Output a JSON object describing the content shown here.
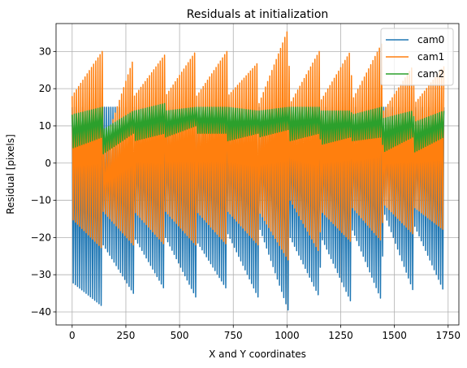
{
  "chart_data": {
    "type": "line",
    "title": "Residuals at initialization",
    "xlabel": "X and Y coordinates",
    "ylabel": "Residual [pixels]",
    "xlim": [
      -75,
      1800
    ],
    "ylim": [
      -43.5,
      37.5
    ],
    "xticks": [
      0,
      250,
      500,
      750,
      1000,
      1250,
      1500,
      1750
    ],
    "yticks": [
      -40,
      -30,
      -20,
      -10,
      0,
      10,
      20,
      30
    ],
    "grid": true,
    "legend_position": "top-right",
    "segment_breaks": [
      0,
      145,
      290,
      435,
      580,
      725,
      870,
      1015,
      1160,
      1305,
      1450,
      1595,
      1740
    ],
    "series": [
      {
        "name": "cam0",
        "color": "#1f77b4",
        "x_range": [
          0,
          1730
        ],
        "period": 10,
        "envelope_max": [
          [
            0,
            15
          ],
          [
            145,
            15
          ],
          [
            290,
            15
          ],
          [
            435,
            15
          ],
          [
            580,
            15
          ],
          [
            725,
            15
          ],
          [
            870,
            15
          ],
          [
            1015,
            15
          ],
          [
            1160,
            15
          ],
          [
            1305,
            15
          ],
          [
            1450,
            15
          ],
          [
            1595,
            15
          ],
          [
            1730,
            15
          ]
        ],
        "envelope_min": [
          [
            0,
            -32
          ],
          [
            140,
            -38.5
          ],
          [
            145,
            -22
          ],
          [
            285,
            -35
          ],
          [
            290,
            -20
          ],
          [
            430,
            -34
          ],
          [
            435,
            -20
          ],
          [
            575,
            -36
          ],
          [
            580,
            -21
          ],
          [
            720,
            -34
          ],
          [
            725,
            -19
          ],
          [
            865,
            -36
          ],
          [
            870,
            -17
          ],
          [
            1005,
            -39.5
          ],
          [
            1015,
            -20
          ],
          [
            1150,
            -36
          ],
          [
            1160,
            -20
          ],
          [
            1295,
            -37
          ],
          [
            1305,
            -18
          ],
          [
            1440,
            -37
          ],
          [
            1450,
            -13
          ],
          [
            1585,
            -34
          ],
          [
            1595,
            -17
          ],
          [
            1730,
            -34.5
          ]
        ]
      },
      {
        "name": "cam1",
        "color": "#ff7f0e",
        "x_range": [
          0,
          1730
        ],
        "period": 10,
        "envelope_max": [
          [
            0,
            18
          ],
          [
            140,
            30
          ],
          [
            145,
            4
          ],
          [
            285,
            28
          ],
          [
            290,
            18
          ],
          [
            430,
            29
          ],
          [
            435,
            18
          ],
          [
            575,
            30
          ],
          [
            580,
            18
          ],
          [
            720,
            30
          ],
          [
            725,
            18
          ],
          [
            865,
            27
          ],
          [
            870,
            16
          ],
          [
            1005,
            36
          ],
          [
            1015,
            16
          ],
          [
            1150,
            30
          ],
          [
            1160,
            17
          ],
          [
            1295,
            30
          ],
          [
            1305,
            17
          ],
          [
            1440,
            32
          ],
          [
            1450,
            14
          ],
          [
            1585,
            26
          ],
          [
            1595,
            16
          ],
          [
            1730,
            26
          ]
        ],
        "envelope_min": [
          [
            0,
            -15
          ],
          [
            140,
            -23
          ],
          [
            145,
            -13
          ],
          [
            285,
            -22
          ],
          [
            290,
            -13
          ],
          [
            430,
            -22
          ],
          [
            435,
            -13
          ],
          [
            575,
            -22
          ],
          [
            580,
            -13
          ],
          [
            720,
            -22
          ],
          [
            725,
            -13
          ],
          [
            865,
            -22
          ],
          [
            870,
            -13
          ],
          [
            1005,
            -26
          ],
          [
            1015,
            -10
          ],
          [
            1150,
            -24
          ],
          [
            1160,
            -13
          ],
          [
            1295,
            -21
          ],
          [
            1305,
            -12
          ],
          [
            1440,
            -21
          ],
          [
            1450,
            -11
          ],
          [
            1585,
            -19
          ],
          [
            1595,
            -12
          ],
          [
            1730,
            -18
          ]
        ]
      },
      {
        "name": "cam2",
        "color": "#2ca02c",
        "x_range": [
          0,
          1730
        ],
        "period": 10,
        "envelope_max": [
          [
            0,
            13
          ],
          [
            140,
            15
          ],
          [
            145,
            9
          ],
          [
            285,
            14
          ],
          [
            290,
            14
          ],
          [
            430,
            16
          ],
          [
            435,
            14
          ],
          [
            575,
            15
          ],
          [
            580,
            15
          ],
          [
            720,
            15
          ],
          [
            725,
            15
          ],
          [
            865,
            14
          ],
          [
            870,
            14
          ],
          [
            1005,
            15
          ],
          [
            1015,
            15
          ],
          [
            1150,
            15
          ],
          [
            1160,
            14
          ],
          [
            1295,
            14
          ],
          [
            1305,
            13
          ],
          [
            1440,
            15
          ],
          [
            1450,
            12
          ],
          [
            1585,
            14
          ],
          [
            1595,
            11
          ],
          [
            1730,
            14
          ]
        ],
        "envelope_min": [
          [
            0,
            4
          ],
          [
            140,
            7
          ],
          [
            145,
            2.5
          ],
          [
            285,
            8
          ],
          [
            290,
            6
          ],
          [
            430,
            8
          ],
          [
            435,
            7
          ],
          [
            575,
            10
          ],
          [
            580,
            8
          ],
          [
            720,
            8
          ],
          [
            725,
            6
          ],
          [
            865,
            8
          ],
          [
            870,
            7
          ],
          [
            1005,
            9
          ],
          [
            1015,
            6
          ],
          [
            1150,
            8
          ],
          [
            1160,
            5
          ],
          [
            1295,
            7
          ],
          [
            1305,
            6
          ],
          [
            1440,
            7
          ],
          [
            1450,
            3
          ],
          [
            1585,
            7
          ],
          [
            1595,
            3
          ],
          [
            1730,
            7
          ]
        ]
      }
    ]
  }
}
